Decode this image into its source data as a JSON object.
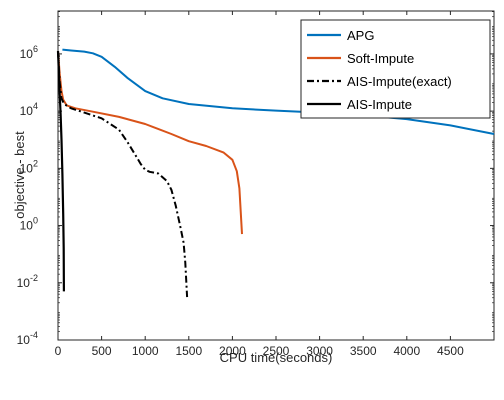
{
  "chart_data": {
    "type": "line",
    "title": "",
    "xlabel": "CPU time(seconds)",
    "ylabel": "objective - best",
    "xscale": "linear",
    "yscale": "log",
    "xlim": [
      0,
      5000
    ],
    "ylim_exponents": [
      -4,
      7.5
    ],
    "x_ticks": [
      {
        "value": 0,
        "label": "0"
      },
      {
        "value": 500,
        "label": "500"
      },
      {
        "value": 1000,
        "label": "1000"
      },
      {
        "value": 1500,
        "label": "1500"
      },
      {
        "value": 2000,
        "label": "2000"
      },
      {
        "value": 2500,
        "label": "2500"
      },
      {
        "value": 3000,
        "label": "3000"
      },
      {
        "value": 3500,
        "label": "3500"
      },
      {
        "value": 4000,
        "label": "4000"
      },
      {
        "value": 4500,
        "label": "4500"
      }
    ],
    "y_ticks": [
      {
        "exp": -4,
        "base": "10",
        "sup": "-4"
      },
      {
        "exp": -2,
        "base": "10",
        "sup": "-2"
      },
      {
        "exp": 0,
        "base": "10",
        "sup": "0"
      },
      {
        "exp": 2,
        "base": "10",
        "sup": "2"
      },
      {
        "exp": 4,
        "base": "10",
        "sup": "4"
      },
      {
        "exp": 6,
        "base": "10",
        "sup": "6"
      }
    ],
    "grid": false,
    "legend_position": "top-right",
    "series": [
      {
        "name": "APG",
        "color": "#0072BD",
        "style": "solid",
        "points": [
          [
            50,
            6.15
          ],
          [
            150,
            6.12
          ],
          [
            300,
            6.08
          ],
          [
            400,
            6.02
          ],
          [
            500,
            5.9
          ],
          [
            650,
            5.55
          ],
          [
            800,
            5.15
          ],
          [
            1000,
            4.7
          ],
          [
            1200,
            4.45
          ],
          [
            1500,
            4.25
          ],
          [
            2000,
            4.1
          ],
          [
            2500,
            4.02
          ],
          [
            3000,
            3.95
          ],
          [
            3500,
            3.85
          ],
          [
            4000,
            3.72
          ],
          [
            4500,
            3.5
          ],
          [
            5000,
            3.2
          ]
        ]
      },
      {
        "name": "Soft-Impute",
        "color": "#D95319",
        "style": "solid",
        "points": [
          [
            0,
            6.1
          ],
          [
            20,
            5.3
          ],
          [
            40,
            4.7
          ],
          [
            60,
            4.4
          ],
          [
            100,
            4.2
          ],
          [
            200,
            4.1
          ],
          [
            400,
            3.98
          ],
          [
            700,
            3.8
          ],
          [
            1000,
            3.55
          ],
          [
            1300,
            3.2
          ],
          [
            1500,
            2.95
          ],
          [
            1700,
            2.78
          ],
          [
            1900,
            2.55
          ],
          [
            2000,
            2.3
          ],
          [
            2050,
            1.9
          ],
          [
            2080,
            1.3
          ],
          [
            2110,
            -0.3
          ]
        ]
      },
      {
        "name": "AIS-Impute(exact)",
        "color": "#000000",
        "style": "dashdot",
        "points": [
          [
            0,
            6.1
          ],
          [
            20,
            5.0
          ],
          [
            40,
            4.45
          ],
          [
            70,
            4.25
          ],
          [
            150,
            4.1
          ],
          [
            300,
            3.95
          ],
          [
            500,
            3.75
          ],
          [
            700,
            3.35
          ],
          [
            800,
            2.9
          ],
          [
            900,
            2.4
          ],
          [
            950,
            2.15
          ],
          [
            1000,
            1.95
          ],
          [
            1050,
            1.88
          ],
          [
            1150,
            1.82
          ],
          [
            1250,
            1.55
          ],
          [
            1300,
            1.25
          ],
          [
            1350,
            0.7
          ],
          [
            1400,
            0.0
          ],
          [
            1440,
            -0.6
          ],
          [
            1460,
            -1.3
          ],
          [
            1480,
            -2.5
          ]
        ]
      },
      {
        "name": "AIS-Impute",
        "color": "#000000",
        "style": "solid",
        "points": [
          [
            0,
            6.1
          ],
          [
            10,
            5.3
          ],
          [
            20,
            4.6
          ],
          [
            30,
            3.9
          ],
          [
            40,
            3.0
          ],
          [
            50,
            1.8
          ],
          [
            60,
            0.4
          ],
          [
            65,
            -0.8
          ],
          [
            68,
            -2.3
          ]
        ]
      }
    ]
  }
}
